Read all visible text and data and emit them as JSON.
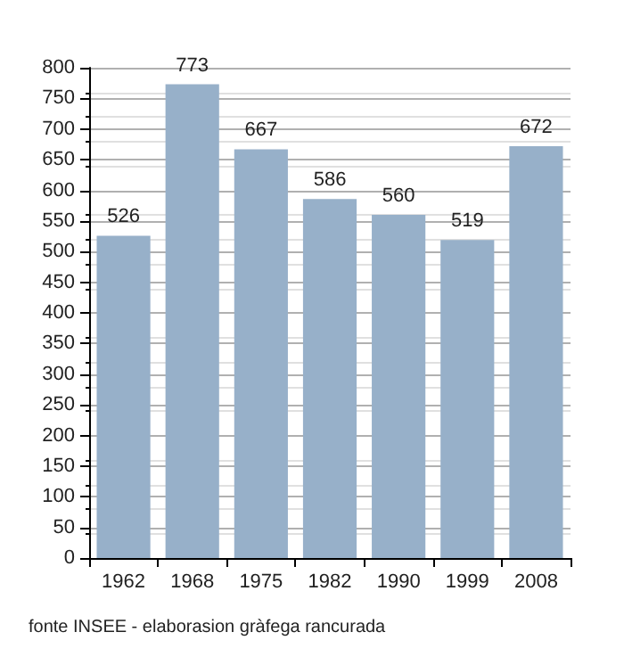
{
  "chart_data": {
    "type": "bar",
    "categories": [
      "1962",
      "1968",
      "1975",
      "1982",
      "1990",
      "1999",
      "2008"
    ],
    "values": [
      526,
      773,
      667,
      586,
      560,
      519,
      672
    ],
    "color": "#97b0c9",
    "data_labels": true,
    "ylim": [
      0,
      800
    ],
    "yticks": [
      0,
      50,
      100,
      150,
      200,
      250,
      300,
      350,
      400,
      450,
      500,
      550,
      600,
      650,
      700,
      750,
      800
    ],
    "grid": "y",
    "annotations": [
      "fonte INSEE - elaborasion gràfega rancurada"
    ]
  }
}
